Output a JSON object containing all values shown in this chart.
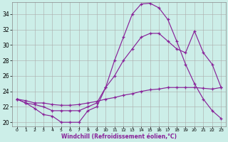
{
  "xlabel": "Windchill (Refroidissement éolien,°C)",
  "background_color": "#cceee8",
  "grid_color": "#aaaaaa",
  "line_color": "#882299",
  "xlim": [
    -0.5,
    23.5
  ],
  "ylim": [
    19.5,
    35.5
  ],
  "yticks": [
    20,
    22,
    24,
    26,
    28,
    30,
    32,
    34
  ],
  "xticks": [
    0,
    1,
    2,
    3,
    4,
    5,
    6,
    7,
    8,
    9,
    10,
    11,
    12,
    13,
    14,
    15,
    16,
    17,
    18,
    19,
    20,
    21,
    22,
    23
  ],
  "curve1_x": [
    0,
    1,
    2,
    3,
    4,
    5,
    6,
    7,
    8,
    9,
    10,
    11,
    12,
    13,
    14,
    15,
    16,
    17,
    18,
    19,
    20,
    21,
    22,
    23
  ],
  "curve1_y": [
    23.0,
    22.5,
    21.8,
    21.0,
    20.8,
    20.0,
    20.0,
    20.0,
    21.5,
    22.0,
    24.5,
    28.0,
    31.0,
    34.0,
    35.3,
    35.4,
    34.8,
    33.3,
    30.5,
    27.5,
    25.0,
    23.0,
    21.5,
    20.5
  ],
  "curve2_x": [
    0,
    1,
    2,
    3,
    4,
    5,
    6,
    7,
    8,
    9,
    10,
    11,
    12,
    13,
    14,
    15,
    16,
    17,
    18,
    19,
    20,
    21,
    22,
    23
  ],
  "curve2_y": [
    23.0,
    22.5,
    22.3,
    22.0,
    21.5,
    21.5,
    21.5,
    21.5,
    22.0,
    22.5,
    24.5,
    26.0,
    28.0,
    29.5,
    31.0,
    31.5,
    31.5,
    30.5,
    29.5,
    29.0,
    31.8,
    29.0,
    27.5,
    24.5
  ],
  "curve3_x": [
    0,
    1,
    2,
    3,
    4,
    5,
    6,
    7,
    8,
    9,
    10,
    11,
    12,
    13,
    14,
    15,
    16,
    17,
    18,
    19,
    20,
    21,
    22,
    23
  ],
  "curve3_y": [
    23.0,
    22.8,
    22.5,
    22.5,
    22.3,
    22.2,
    22.2,
    22.3,
    22.5,
    22.7,
    23.0,
    23.2,
    23.5,
    23.7,
    24.0,
    24.2,
    24.3,
    24.5,
    24.5,
    24.5,
    24.5,
    24.4,
    24.3,
    24.5
  ]
}
